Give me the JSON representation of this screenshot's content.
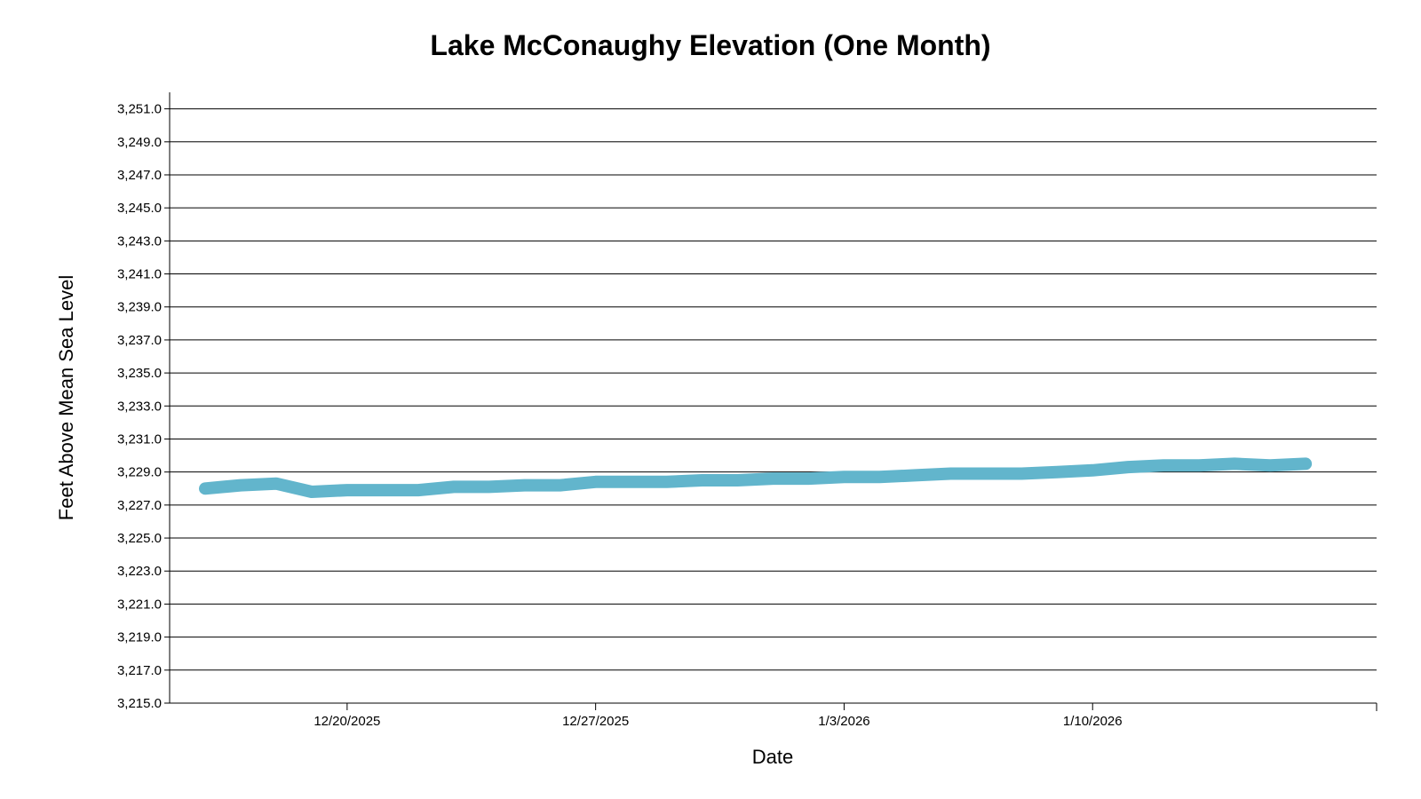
{
  "chart_data": {
    "type": "line",
    "title": "Lake McConaughy Elevation (One Month)",
    "xlabel": "Date",
    "ylabel": "Feet Above Mean Sea Level",
    "x_type": "date",
    "xlim": [
      "2025-12-15",
      "2026-01-18"
    ],
    "x_ticks": [
      {
        "date": "2025-12-20",
        "label": "12/20/2025"
      },
      {
        "date": "2025-12-27",
        "label": "12/27/2025"
      },
      {
        "date": "2026-01-03",
        "label": "1/3/2026"
      },
      {
        "date": "2026-01-10",
        "label": "1/10/2026"
      }
    ],
    "ylim": [
      3215.0,
      3252.0
    ],
    "y_ticks": [
      3215.0,
      3217.0,
      3219.0,
      3221.0,
      3223.0,
      3225.0,
      3227.0,
      3229.0,
      3231.0,
      3233.0,
      3235.0,
      3237.0,
      3239.0,
      3241.0,
      3243.0,
      3245.0,
      3247.0,
      3249.0,
      3251.0
    ],
    "y_tick_labels": [
      "3,215.0",
      "3,217.0",
      "3,219.0",
      "3,221.0",
      "3,223.0",
      "3,225.0",
      "3,227.0",
      "3,229.0",
      "3,231.0",
      "3,233.0",
      "3,235.0",
      "3,237.0",
      "3,239.0",
      "3,241.0",
      "3,243.0",
      "3,245.0",
      "3,247.0",
      "3,249.0",
      "3,251.0"
    ],
    "grid": true,
    "legend": "none",
    "color": "#62b5cc",
    "series": [
      {
        "points": [
          {
            "x": "2025-12-16",
            "y": 3228.0
          },
          {
            "x": "2025-12-17",
            "y": 3228.2
          },
          {
            "x": "2025-12-18",
            "y": 3228.3
          },
          {
            "x": "2025-12-19",
            "y": 3227.8
          },
          {
            "x": "2025-12-20",
            "y": 3227.9
          },
          {
            "x": "2025-12-21",
            "y": 3227.9
          },
          {
            "x": "2025-12-22",
            "y": 3227.9
          },
          {
            "x": "2025-12-23",
            "y": 3228.1
          },
          {
            "x": "2025-12-24",
            "y": 3228.1
          },
          {
            "x": "2025-12-25",
            "y": 3228.2
          },
          {
            "x": "2025-12-26",
            "y": 3228.2
          },
          {
            "x": "2025-12-27",
            "y": 3228.4
          },
          {
            "x": "2025-12-28",
            "y": 3228.4
          },
          {
            "x": "2025-12-29",
            "y": 3228.4
          },
          {
            "x": "2025-12-30",
            "y": 3228.5
          },
          {
            "x": "2025-12-31",
            "y": 3228.5
          },
          {
            "x": "2026-01-01",
            "y": 3228.6
          },
          {
            "x": "2026-01-02",
            "y": 3228.6
          },
          {
            "x": "2026-01-03",
            "y": 3228.7
          },
          {
            "x": "2026-01-04",
            "y": 3228.7
          },
          {
            "x": "2026-01-05",
            "y": 3228.8
          },
          {
            "x": "2026-01-06",
            "y": 3228.9
          },
          {
            "x": "2026-01-07",
            "y": 3228.9
          },
          {
            "x": "2026-01-08",
            "y": 3228.9
          },
          {
            "x": "2026-01-09",
            "y": 3229.0
          },
          {
            "x": "2026-01-10",
            "y": 3229.1
          },
          {
            "x": "2026-01-11",
            "y": 3229.3
          },
          {
            "x": "2026-01-12",
            "y": 3229.4
          },
          {
            "x": "2026-01-13",
            "y": 3229.4
          },
          {
            "x": "2026-01-14",
            "y": 3229.5
          },
          {
            "x": "2026-01-15",
            "y": 3229.4
          },
          {
            "x": "2026-01-16",
            "y": 3229.5
          }
        ]
      }
    ]
  }
}
